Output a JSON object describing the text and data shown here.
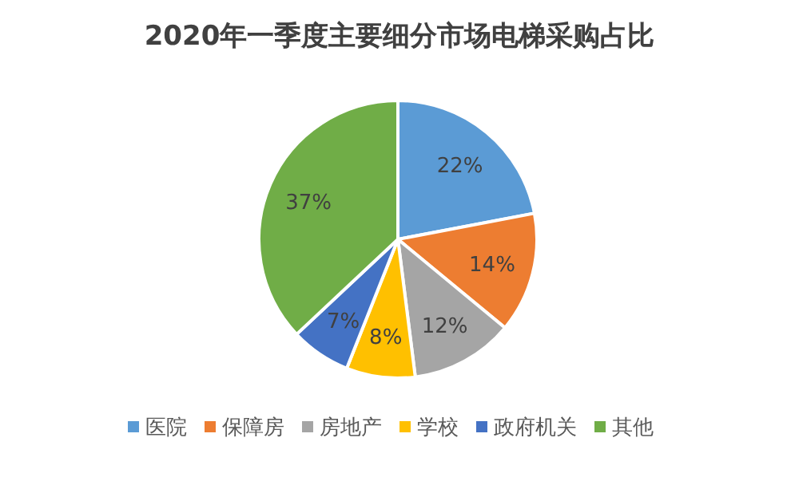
{
  "chart_data": {
    "type": "pie",
    "title": "2020年一季度主要细分市场电梯采购占比",
    "categories": [
      "医院",
      "保障房",
      "房地产",
      "学校",
      "政府机关",
      "其他"
    ],
    "values": [
      22,
      14,
      12,
      8,
      7,
      37
    ],
    "colors": [
      "#5b9bd5",
      "#ed7d31",
      "#a5a5a5",
      "#ffc000",
      "#4472c4",
      "#70ad47"
    ],
    "value_labels": [
      "22%",
      "14%",
      "12%",
      "8%",
      "7%",
      "37%"
    ],
    "legend": "bottom"
  }
}
